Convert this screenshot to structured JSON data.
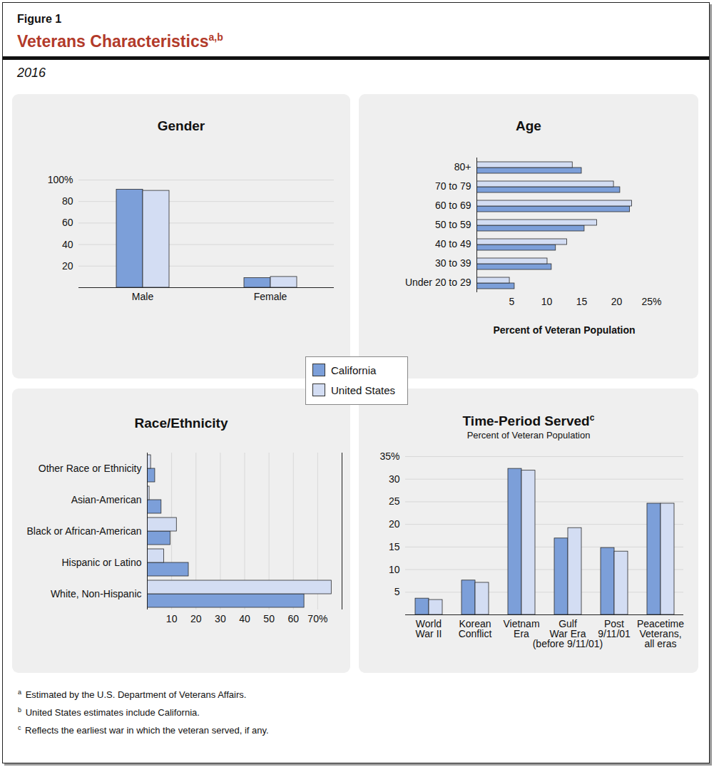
{
  "figure_label": "Figure 1",
  "title": "Veterans Characteristics",
  "title_note": "a,b",
  "subtitle": "2016",
  "chart_data": [
    {
      "type": "bar",
      "title": "Gender",
      "categories": [
        "Male",
        "Female"
      ],
      "series": [
        {
          "name": "California",
          "color": "#7c9fd9",
          "values": [
            91,
            9
          ]
        },
        {
          "name": "United States",
          "color": "#d3ddf3",
          "values": [
            90,
            10
          ]
        }
      ],
      "ylim": [
        0,
        100
      ],
      "yticks": [
        20,
        40,
        60,
        80,
        {
          "value": 100,
          "label": "100%"
        }
      ],
      "grid": true
    },
    {
      "type": "bar",
      "title": "Age",
      "orientation": "horizontal",
      "categories": [
        "80+",
        "70 to 79",
        "60 to 69",
        "50 to 59",
        "40 to 49",
        "30 to 39",
        "Under 20 to 29"
      ],
      "series": [
        {
          "name": "California",
          "color": "#7c9fd9",
          "values": [
            15.0,
            20.5,
            21.9,
            15.4,
            11.3,
            10.7,
            5.4
          ]
        },
        {
          "name": "United States",
          "color": "#d3ddf3",
          "values": [
            13.7,
            19.6,
            22.2,
            17.2,
            12.9,
            10.1,
            4.7
          ]
        }
      ],
      "xlabel": "Percent of Veteran Population",
      "xlim": [
        0,
        25
      ],
      "xticks": [
        5,
        10,
        15,
        20,
        {
          "value": 25,
          "label": "25%"
        }
      ],
      "grid": false
    },
    {
      "type": "bar",
      "title": "Race/Ethnicity",
      "orientation": "horizontal",
      "categories": [
        "Other Race or Ethnicity",
        "Asian-American",
        "Black or African-American",
        "Hispanic or Latino",
        "White, Non-Hispanic"
      ],
      "series": [
        {
          "name": "California",
          "color": "#7c9fd9",
          "values": [
            3.2,
            5.8,
            9.5,
            17,
            64.5
          ]
        },
        {
          "name": "United States",
          "color": "#d3ddf3",
          "values": [
            1.5,
            0.9,
            12.1,
            6.9,
            75.7
          ]
        }
      ],
      "xlim": [
        0,
        80
      ],
      "xticks": [
        10,
        20,
        30,
        40,
        50,
        60,
        {
          "value": 70,
          "label": "70%"
        }
      ],
      "grid": true
    },
    {
      "type": "bar",
      "title": "Time-Period Served",
      "title_note": "c",
      "subtitle": "Percent of Veteran Population",
      "categories": [
        "World\nWar II",
        "Korean\nConflict",
        "Vietnam\nEra",
        "Gulf\nWar Era\n(before 9/11/01)",
        "Post\n9/11/01",
        "Peacetime\nVeterans,\nall eras"
      ],
      "series": [
        {
          "name": "California",
          "color": "#7c9fd9",
          "values": [
            3.6,
            7.6,
            32.3,
            16.9,
            14.8,
            24.6
          ]
        },
        {
          "name": "United States",
          "color": "#d3ddf3",
          "values": [
            3.3,
            7.1,
            31.9,
            19.2,
            14.0,
            24.6
          ]
        }
      ],
      "ylim": [
        0,
        35
      ],
      "yticks": [
        5,
        10,
        15,
        20,
        25,
        30,
        {
          "value": 35,
          "label": "35%"
        }
      ],
      "grid": true
    }
  ],
  "footnotes": [
    {
      "mark": "a",
      "text": "Estimated by the U.S. Department of Veterans Affairs."
    },
    {
      "mark": "b",
      "text": "United States estimates include California."
    },
    {
      "mark": "c",
      "text": "Reflects the earliest war in which the veteran served, if any."
    }
  ]
}
